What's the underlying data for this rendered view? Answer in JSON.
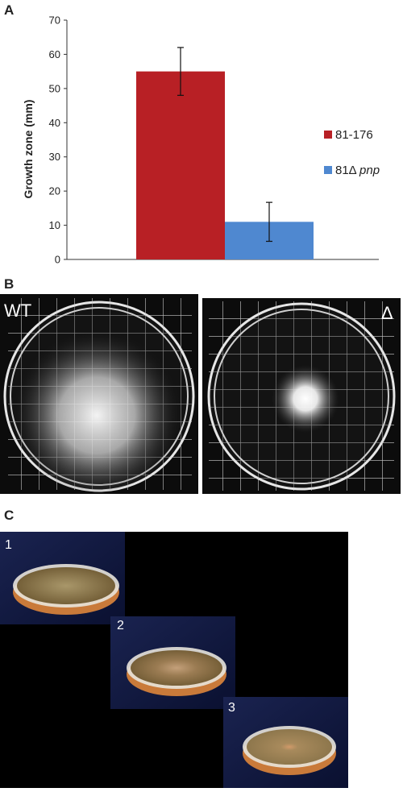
{
  "panels": {
    "a": "A",
    "b": "B",
    "c": "C"
  },
  "chart_data": {
    "type": "bar",
    "categories": [
      "81-176",
      "81Δ pnp"
    ],
    "values": [
      55,
      11
    ],
    "errors": [
      7,
      5.7
    ],
    "colors": [
      "#b82025",
      "#4f88d0"
    ],
    "ylabel": "Growth zone (mm)",
    "xlabel": "",
    "ylim": [
      0,
      70
    ],
    "yticks": [
      0,
      10,
      20,
      30,
      40,
      50,
      60,
      70
    ],
    "legend": {
      "position": "right",
      "items": [
        {
          "label": "81-176",
          "color": "#b82025"
        },
        {
          "prefix": "81Δ ",
          "italic": "pnp",
          "color": "#4f88d0"
        }
      ]
    }
  },
  "panel_b": {
    "left_tag": "WT",
    "right_tag": "Δ"
  },
  "panel_c": {
    "labels": [
      "1",
      "2",
      "3"
    ]
  }
}
